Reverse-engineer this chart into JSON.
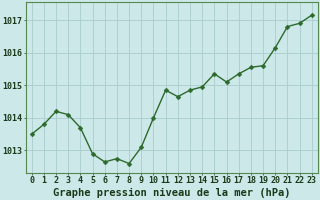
{
  "x": [
    0,
    1,
    2,
    3,
    4,
    5,
    6,
    7,
    8,
    9,
    10,
    11,
    12,
    13,
    14,
    15,
    16,
    17,
    18,
    19,
    20,
    21,
    22,
    23
  ],
  "y": [
    1013.5,
    1013.8,
    1014.2,
    1014.1,
    1013.7,
    1012.9,
    1012.65,
    1012.75,
    1012.6,
    1013.1,
    1014.0,
    1014.85,
    1014.65,
    1014.85,
    1014.95,
    1015.35,
    1015.1,
    1015.35,
    1015.55,
    1015.6,
    1016.15,
    1016.8,
    1016.9,
    1017.15
  ],
  "line_color": "#2d6a2d",
  "marker_color": "#2d6a2d",
  "bg_color": "#cce8e8",
  "grid_color": "#aacccc",
  "xlabel": "Graphe pression niveau de la mer (hPa)",
  "xlabel_color": "#1a3a1a",
  "xlabel_fontsize": 7.5,
  "tick_color": "#1a3a1a",
  "tick_fontsize": 6,
  "ytick_labels": [
    1013,
    1014,
    1015,
    1016,
    1017
  ],
  "ylim": [
    1012.3,
    1017.55
  ],
  "xlim": [
    -0.5,
    23.5
  ],
  "xtick_labels": [
    "0",
    "1",
    "2",
    "3",
    "4",
    "5",
    "6",
    "7",
    "8",
    "9",
    "10",
    "11",
    "12",
    "13",
    "14",
    "15",
    "16",
    "17",
    "18",
    "19",
    "20",
    "21",
    "22",
    "23"
  ],
  "marker_size": 2.5,
  "line_width": 1.0
}
